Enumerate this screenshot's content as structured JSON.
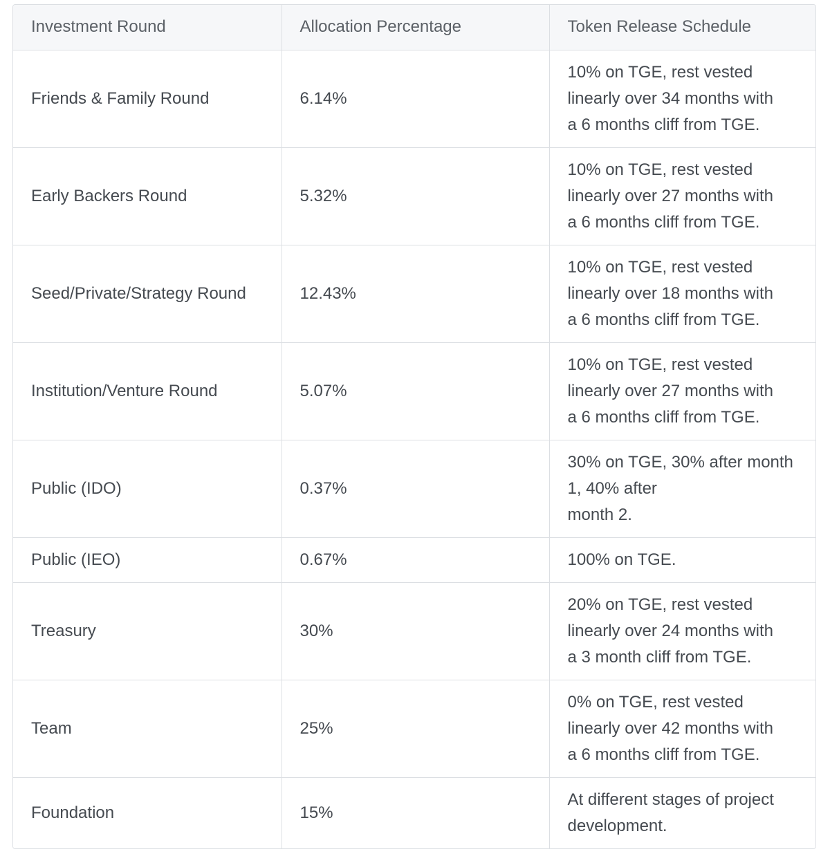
{
  "table": {
    "headers": [
      "Investment Round",
      "Allocation Percentage",
      "Token Release Schedule"
    ],
    "rows": [
      {
        "round": "Friends & Family Round",
        "allocation": "6.14%",
        "schedule": [
          "10% on TGE, rest vested",
          "linearly over 34 months with",
          "a 6 months cliff from TGE."
        ]
      },
      {
        "round": "Early Backers Round",
        "allocation": "5.32%",
        "schedule": [
          "10% on TGE, rest vested",
          "linearly over 27 months with",
          "a 6 months cliff from TGE."
        ]
      },
      {
        "round": "Seed/Private/Strategy  Round",
        "allocation": "12.43%",
        "schedule": [
          "10% on TGE, rest vested",
          "linearly over 18 months with",
          "a 6 months cliff from TGE."
        ]
      },
      {
        "round": "Institution/Venture Round",
        "allocation": "5.07%",
        "schedule": [
          "10% on TGE, rest vested",
          "linearly over 27 months with",
          "a 6 months cliff from TGE."
        ]
      },
      {
        "round": "Public (IDO)",
        "allocation": "0.37%",
        "schedule": [
          "30% on TGE, 30% after month",
          "1, 40% after",
          "month 2."
        ]
      },
      {
        "round": "Public (IEO)",
        "allocation": "0.67%",
        "schedule": [
          "100% on TGE."
        ]
      },
      {
        "round": "Treasury",
        "allocation": "30%",
        "schedule": [
          "20% on TGE, rest vested",
          "linearly over 24 months with",
          "a 3 month cliff from TGE."
        ]
      },
      {
        "round": "Team",
        "allocation": "25%",
        "schedule": [
          "0% on TGE, rest vested",
          "linearly over 42 months with",
          "a 6 months cliff from TGE."
        ]
      },
      {
        "round": "Foundation",
        "allocation": "15%",
        "schedule": [
          "At different stages of project",
          "development."
        ]
      }
    ]
  }
}
